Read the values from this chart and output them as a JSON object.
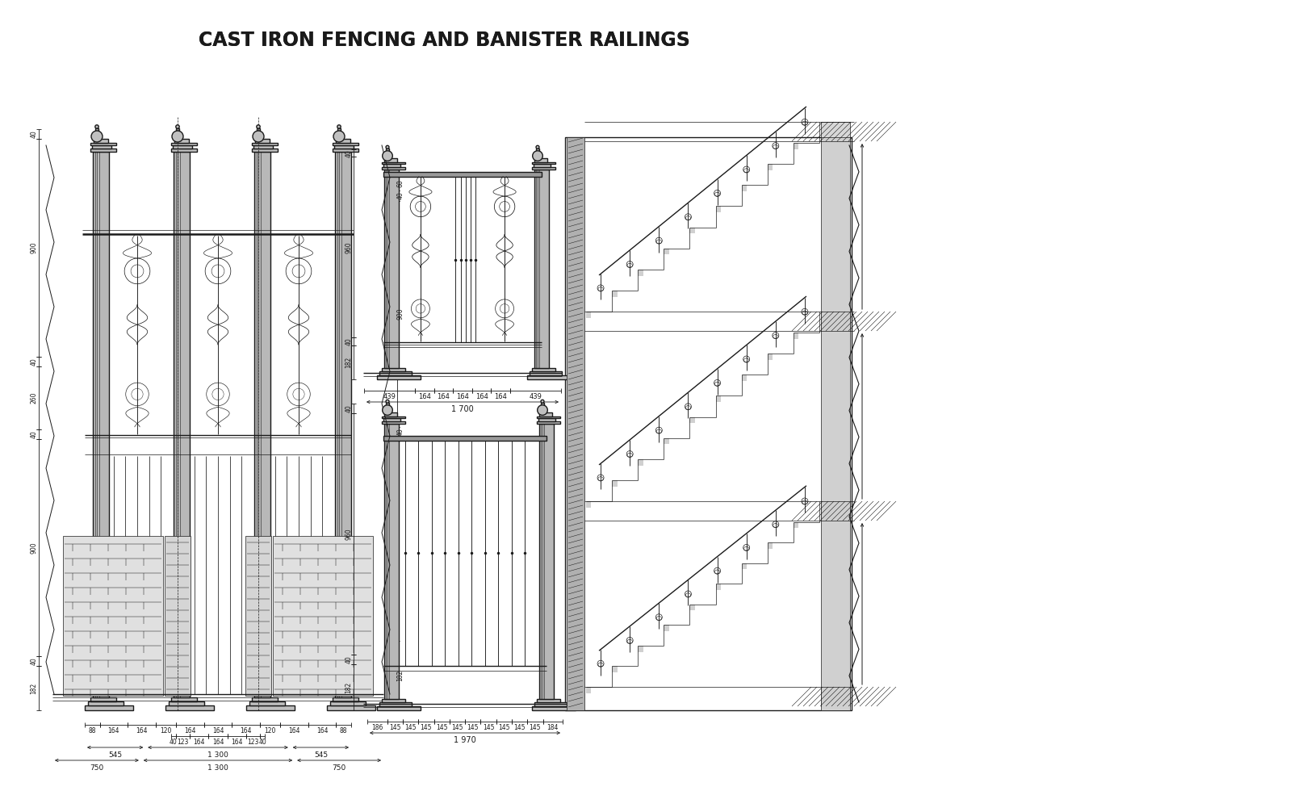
{
  "title": "CAST IRON FENCING AND BANISTER RAILINGS",
  "title_fontsize": 17,
  "bg_color": "#ffffff",
  "lc": "#1a1a1a",
  "dc": "#1a1a1a",
  "fc_light": "#cccccc",
  "fc_mid": "#aaaaaa",
  "fc_dark": "#666666",
  "fc_stone": "#e0e0e0"
}
